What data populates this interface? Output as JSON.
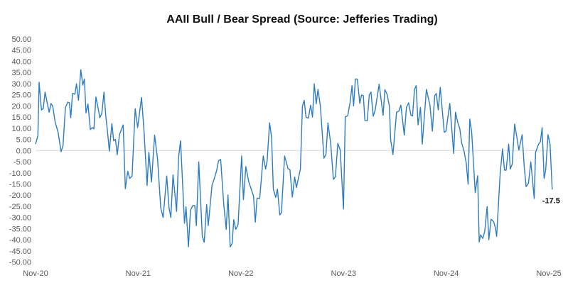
{
  "chart_data": {
    "type": "line",
    "title": "AAII Bull / Bear Spread (Source: Jefferies Trading)",
    "xlabel": "",
    "ylabel": "",
    "x_unit": "weeks since Nov-20",
    "ylim": [
      -50,
      50
    ],
    "xlim": [
      0,
      261.5
    ],
    "grid": false,
    "zero_line": true,
    "line_color": "#2E7CC0",
    "y_ticks": [
      "50.00",
      "45.00",
      "40.00",
      "35.00",
      "30.00",
      "25.00",
      "20.00",
      "15.00",
      "10.00",
      "5.00",
      "0.00",
      "-5.00",
      "-10.00",
      "-15.00",
      "-20.00",
      "-25.00",
      "-30.00",
      "-35.00",
      "-40.00",
      "-45.00",
      "-50.00"
    ],
    "y_tick_values": [
      50,
      45,
      40,
      35,
      30,
      25,
      20,
      15,
      10,
      5,
      0,
      -5,
      -10,
      -15,
      -20,
      -25,
      -30,
      -35,
      -40,
      -45,
      -50
    ],
    "x_ticks": [
      {
        "label": "Nov-20",
        "week": 0
      },
      {
        "label": "Nov-21",
        "week": 51.9
      },
      {
        "label": "Nov-22",
        "week": 103.8
      },
      {
        "label": "Nov-23",
        "week": 155.7
      },
      {
        "label": "Nov-24",
        "week": 207.6
      },
      {
        "label": "Nov-25",
        "week": 259.5
      }
    ],
    "last_value_label": "-17.5",
    "series": [
      {
        "name": "AAII Bull / Bear Spread",
        "points": [
          [
            0,
            2.9
          ],
          [
            1.2,
            6.6
          ],
          [
            1.8,
            30.6
          ],
          [
            3,
            18.2
          ],
          [
            3.9,
            18.8
          ],
          [
            4.8,
            26.2
          ],
          [
            6,
            20.9
          ],
          [
            6.9,
            17.2
          ],
          [
            7.8,
            21.1
          ],
          [
            8.7,
            19.8
          ],
          [
            9.9,
            12.9
          ],
          [
            11.4,
            8.2
          ],
          [
            12.9,
            -0.5
          ],
          [
            13.9,
            2.3
          ],
          [
            15.1,
            19.3
          ],
          [
            16.3,
            21.7
          ],
          [
            17.1,
            21.4
          ],
          [
            17.8,
            14.7
          ],
          [
            18.7,
            25.6
          ],
          [
            19.9,
            25.3
          ],
          [
            20.7,
            29.9
          ],
          [
            21.7,
            22.5
          ],
          [
            22.9,
            36.2
          ],
          [
            23.9,
            29.3
          ],
          [
            24.7,
            32
          ],
          [
            25.5,
            16.8
          ],
          [
            26.5,
            20.9
          ],
          [
            27.7,
            9.4
          ],
          [
            28.7,
            10.3
          ],
          [
            29.5,
            9.7
          ],
          [
            30.5,
            24
          ],
          [
            31.6,
            19.3
          ],
          [
            32.5,
            14.7
          ],
          [
            33.5,
            16.6
          ],
          [
            34.6,
            26.2
          ],
          [
            35.5,
            15.6
          ],
          [
            36.4,
            8.2
          ],
          [
            37.3,
            -0.3
          ],
          [
            38.6,
            12.1
          ],
          [
            39.5,
            4.4
          ],
          [
            40.4,
            5
          ],
          [
            41.3,
            -1.9
          ],
          [
            42.4,
            7.1
          ],
          [
            44.3,
            11.5
          ],
          [
            45.4,
            -17.1
          ],
          [
            46.6,
            -9.3
          ],
          [
            47.6,
            -12.5
          ],
          [
            48.8,
            -11.4
          ],
          [
            50.4,
            18.8
          ],
          [
            51.6,
            10.3
          ],
          [
            53.6,
            23.8
          ],
          [
            54.8,
            9.2
          ],
          [
            56.4,
            -15.7
          ],
          [
            57.3,
            -0.8
          ],
          [
            58.6,
            -14.1
          ],
          [
            60.2,
            6.9
          ],
          [
            61.7,
            -4
          ],
          [
            63.3,
            -25.7
          ],
          [
            64.5,
            -30
          ],
          [
            66.3,
            -11.4
          ],
          [
            67.5,
            -25.7
          ],
          [
            68.4,
            -30
          ],
          [
            69.5,
            -10.9
          ],
          [
            71.3,
            -27.3
          ],
          [
            72.3,
            -3
          ],
          [
            73.3,
            4.4
          ],
          [
            75.3,
            -32.6
          ],
          [
            76.1,
            -25.2
          ],
          [
            77.3,
            -43.2
          ],
          [
            78.3,
            -26.8
          ],
          [
            79.5,
            -24.7
          ],
          [
            80.5,
            -24.7
          ],
          [
            81.3,
            -33.7
          ],
          [
            82.5,
            -5.1
          ],
          [
            84.3,
            -38.5
          ],
          [
            85.3,
            -41.1
          ],
          [
            86.5,
            -24.2
          ],
          [
            87.3,
            -33.7
          ],
          [
            89.2,
            -15.7
          ],
          [
            90.4,
            -12.5
          ],
          [
            91.6,
            -8.8
          ],
          [
            92.5,
            -4.6
          ],
          [
            93.6,
            -4
          ],
          [
            95.2,
            -24.7
          ],
          [
            96.4,
            -35.3
          ],
          [
            97.3,
            -19.9
          ],
          [
            98.4,
            -43.2
          ],
          [
            99.4,
            -41.6
          ],
          [
            100.2,
            -31
          ],
          [
            101.2,
            -35.3
          ],
          [
            102.4,
            -33.2
          ],
          [
            104.2,
            -2.4
          ],
          [
            105.1,
            -22
          ],
          [
            106.3,
            -7.2
          ],
          [
            107.8,
            -14.1
          ],
          [
            109.4,
            -18.3
          ],
          [
            110.2,
            -20.4
          ],
          [
            111.1,
            -32.1
          ],
          [
            112,
            -21.3
          ],
          [
            113.3,
            -21.5
          ],
          [
            115.1,
            -2.4
          ],
          [
            116.3,
            -8.3
          ],
          [
            117.1,
            -4.6
          ],
          [
            118.3,
            12.4
          ],
          [
            119.3,
            6
          ],
          [
            120.2,
            -17.3
          ],
          [
            121.4,
            -21
          ],
          [
            122.3,
            -17.3
          ],
          [
            123.5,
            -28.9
          ],
          [
            124.3,
            -27.9
          ],
          [
            125.9,
            -2.4
          ],
          [
            127.7,
            -8.2
          ],
          [
            128.6,
            -8.5
          ],
          [
            129.8,
            -20.9
          ],
          [
            131,
            -11.9
          ],
          [
            131.9,
            -16.6
          ],
          [
            133.9,
            -8.2
          ],
          [
            134.9,
            19.8
          ],
          [
            135.8,
            22.5
          ],
          [
            136.7,
            15
          ],
          [
            137.9,
            14.5
          ],
          [
            139.1,
            20.3
          ],
          [
            140,
            15
          ],
          [
            140.9,
            29.9
          ],
          [
            141.9,
            20.9
          ],
          [
            142.8,
            27.4
          ],
          [
            144,
            19.8
          ],
          [
            145.8,
            -3.4
          ],
          [
            146.8,
            -1.8
          ],
          [
            147.8,
            12.4
          ],
          [
            149.2,
            3.5
          ],
          [
            150.6,
            -12.9
          ],
          [
            151.6,
            -11.8
          ],
          [
            152.8,
            3.2
          ],
          [
            154,
            0.3
          ],
          [
            155.7,
            -26.2
          ],
          [
            156.6,
            15.1
          ],
          [
            157.8,
            15.6
          ],
          [
            159,
            21.4
          ],
          [
            160,
            29.1
          ],
          [
            160.8,
            20
          ],
          [
            161.7,
            32
          ],
          [
            162.7,
            32
          ],
          [
            163.9,
            21.1
          ],
          [
            164.8,
            24.9
          ],
          [
            165.7,
            24.6
          ],
          [
            166.5,
            13.5
          ],
          [
            167.7,
            13.3
          ],
          [
            168.7,
            24.9
          ],
          [
            169.6,
            26.2
          ],
          [
            170.7,
            15.4
          ],
          [
            171.7,
            18.2
          ],
          [
            173.7,
            29.7
          ],
          [
            175.7,
            15.8
          ],
          [
            176.6,
            27.3
          ],
          [
            177.7,
            25.2
          ],
          [
            178.9,
            19.9
          ],
          [
            179.5,
            5
          ],
          [
            180.7,
            -1.8
          ],
          [
            182.5,
            17.2
          ],
          [
            183.7,
            17.7
          ],
          [
            184.7,
            20.3
          ],
          [
            186.4,
            6.9
          ],
          [
            187.5,
            19.3
          ],
          [
            188.6,
            21.4
          ],
          [
            189.8,
            15.8
          ],
          [
            190.6,
            15.5
          ],
          [
            191.6,
            27.4
          ],
          [
            192.4,
            29.1
          ],
          [
            193.4,
            11.5
          ],
          [
            194.6,
            19.3
          ],
          [
            195.5,
            2.9
          ],
          [
            197.6,
            27.4
          ],
          [
            199.4,
            20.3
          ],
          [
            200.6,
            8.7
          ],
          [
            201.8,
            24.6
          ],
          [
            202.6,
            25.6
          ],
          [
            203.6,
            18.2
          ],
          [
            204.6,
            28.3
          ],
          [
            206.6,
            8.2
          ],
          [
            207.5,
            8.7
          ],
          [
            209.4,
            21.1
          ],
          [
            211.4,
            -1.3
          ],
          [
            212.3,
            17.2
          ],
          [
            213.5,
            12.4
          ],
          [
            214.5,
            9.8
          ],
          [
            215.4,
            3.4
          ],
          [
            216.6,
            -0.2
          ],
          [
            217.7,
            -5.5
          ],
          [
            218.7,
            -15.1
          ],
          [
            219.5,
            14.1
          ],
          [
            220.5,
            8.3
          ],
          [
            222.3,
            -18.9
          ],
          [
            223.5,
            -11.3
          ],
          [
            224.3,
            -41
          ],
          [
            225,
            -37.8
          ],
          [
            226.1,
            -39.4
          ],
          [
            227.1,
            -36.2
          ],
          [
            228.3,
            -25.1
          ],
          [
            229.2,
            -40
          ],
          [
            230.3,
            -30.8
          ],
          [
            231.6,
            -31.9
          ],
          [
            232.5,
            -34.7
          ],
          [
            233.1,
            -38.5
          ],
          [
            234.9,
            -10.3
          ],
          [
            236.1,
            0.7
          ],
          [
            237.1,
            -8.8
          ],
          [
            237.9,
            -8.8
          ],
          [
            239.2,
            2.9
          ],
          [
            240,
            -8.3
          ],
          [
            241,
            -6
          ],
          [
            242.2,
            11.9
          ],
          [
            243.4,
            5.5
          ],
          [
            244.3,
            0.2
          ],
          [
            246,
            7.1
          ],
          [
            247,
            -6.7
          ],
          [
            248,
            -16.2
          ],
          [
            249.2,
            -14.6
          ],
          [
            250.4,
            -5.1
          ],
          [
            252.1,
            -21.5
          ],
          [
            252.8,
            -0.8
          ],
          [
            254.3,
            2.9
          ],
          [
            255.2,
            3.9
          ],
          [
            256.1,
            10.3
          ],
          [
            257.1,
            -12.5
          ],
          [
            257.9,
            -8.8
          ],
          [
            259.1,
            7.1
          ],
          [
            260.1,
            2.9
          ],
          [
            261.2,
            -17.5
          ]
        ]
      }
    ]
  }
}
